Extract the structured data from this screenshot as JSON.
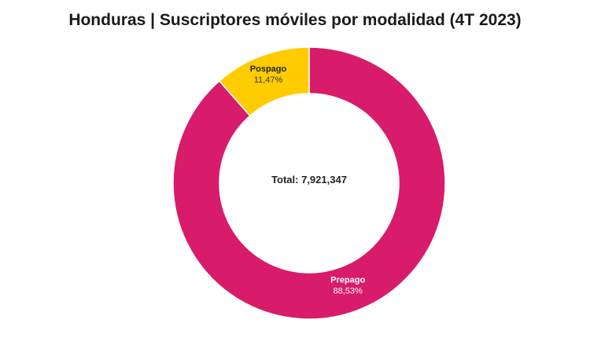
{
  "chart_data": {
    "type": "pie",
    "title": "Honduras | Suscriptores móviles por modalidad (4T 2023)",
    "center_label": "Total: 7,921,347",
    "slices": [
      {
        "name": "Prepago",
        "value": 88.53,
        "label": "88,53%",
        "color": "#d81b6a"
      },
      {
        "name": "Pospago",
        "value": 11.47,
        "label": "11,47%",
        "color": "#ffcc00"
      }
    ]
  }
}
